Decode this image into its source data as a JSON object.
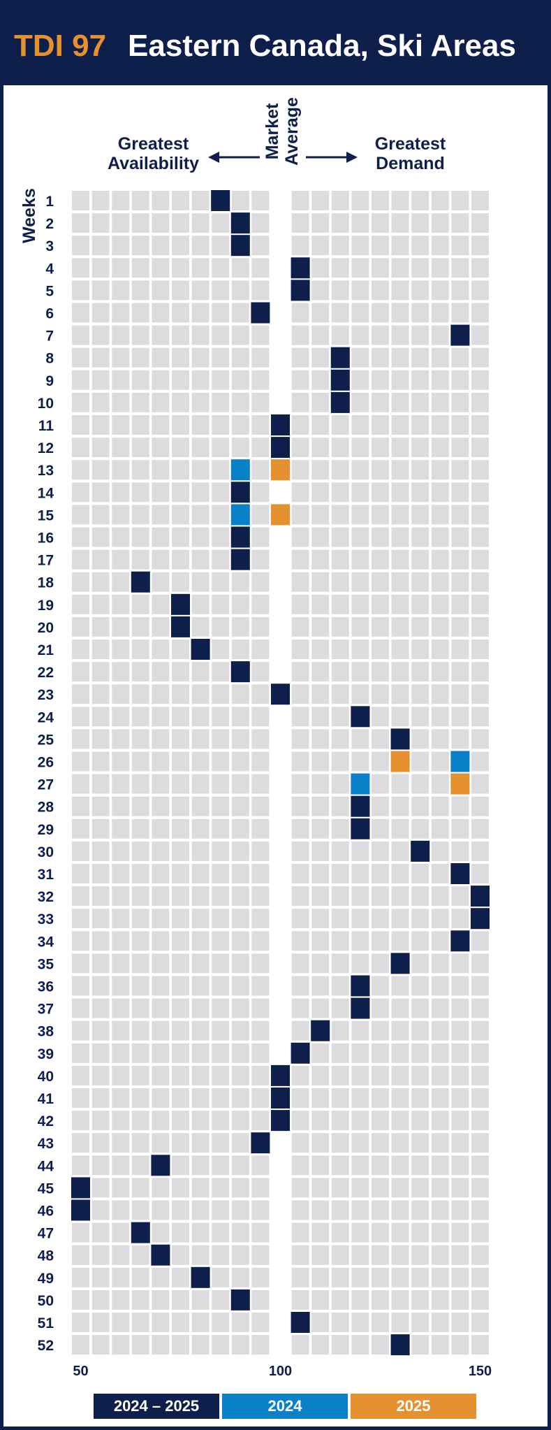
{
  "title": {
    "code": "TDI 97",
    "text": "Eastern Canada, Ski Areas"
  },
  "headers": {
    "left": [
      "Greatest",
      "Availability"
    ],
    "middle": [
      "Market",
      "Average"
    ],
    "right": [
      "Greatest",
      "Demand"
    ],
    "y_axis": "Weeks"
  },
  "colors": {
    "series_2024_2025": "#0f1f4b",
    "series_2024": "#0a80c8",
    "series_2025": "#e5912f",
    "cell": "#dcdcdf",
    "grid_bg": "#ffffff"
  },
  "legend": [
    {
      "label": "2024 – 2025",
      "color": "#0f1f4b"
    },
    {
      "label": "2024",
      "color": "#0a80c8"
    },
    {
      "label": "2025",
      "color": "#e5912f"
    }
  ],
  "chart_data": {
    "type": "heatmap",
    "x_ticks": [
      50,
      100,
      150
    ],
    "xlim": [
      50,
      150
    ],
    "market_average": 100,
    "weeks": [
      1,
      2,
      3,
      4,
      5,
      6,
      7,
      8,
      9,
      10,
      11,
      12,
      13,
      14,
      15,
      16,
      17,
      18,
      19,
      20,
      21,
      22,
      23,
      24,
      25,
      26,
      27,
      28,
      29,
      30,
      31,
      32,
      33,
      34,
      35,
      36,
      37,
      38,
      39,
      40,
      41,
      42,
      43,
      44,
      45,
      46,
      47,
      48,
      49,
      50,
      51,
      52
    ],
    "series": [
      {
        "name": "2024 – 2025",
        "values": [
          85,
          90,
          90,
          105,
          105,
          95,
          145,
          115,
          115,
          115,
          100,
          100,
          null,
          90,
          null,
          90,
          90,
          65,
          75,
          75,
          80,
          90,
          100,
          120,
          130,
          null,
          null,
          120,
          120,
          135,
          145,
          150,
          150,
          145,
          130,
          120,
          120,
          110,
          105,
          100,
          100,
          100,
          95,
          70,
          50,
          50,
          65,
          70,
          80,
          90,
          105,
          130
        ]
      },
      {
        "name": "2024",
        "values": [
          null,
          null,
          null,
          null,
          null,
          null,
          null,
          null,
          null,
          null,
          null,
          null,
          90,
          null,
          90,
          null,
          null,
          null,
          null,
          null,
          null,
          null,
          null,
          null,
          null,
          145,
          120,
          null,
          null,
          null,
          null,
          null,
          null,
          null,
          null,
          null,
          null,
          null,
          null,
          null,
          null,
          null,
          null,
          null,
          null,
          null,
          null,
          null,
          null,
          null,
          null,
          null
        ]
      },
      {
        "name": "2025",
        "values": [
          null,
          null,
          null,
          null,
          null,
          null,
          null,
          null,
          null,
          null,
          null,
          null,
          100,
          null,
          100,
          null,
          null,
          null,
          null,
          null,
          null,
          null,
          null,
          null,
          null,
          130,
          145,
          null,
          null,
          null,
          null,
          null,
          null,
          null,
          null,
          null,
          null,
          null,
          null,
          null,
          null,
          null,
          null,
          null,
          null,
          null,
          null,
          null,
          null,
          null,
          null,
          null
        ]
      }
    ]
  }
}
